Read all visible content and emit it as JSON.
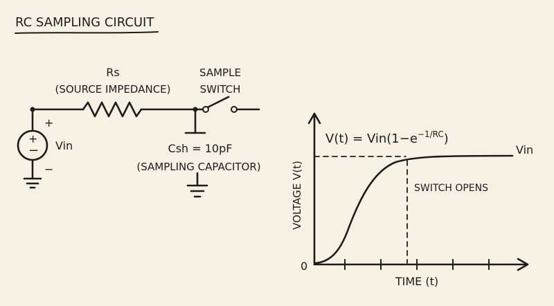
{
  "title": "RC SAMPLING CIRCUIT",
  "circuit": {
    "resistor_name": "Rs",
    "resistor_desc": "(SOURCE IMPEDANCE)",
    "switch_label_line1": "SAMPLE",
    "switch_label_line2": "SWITCH",
    "source_plus": "+",
    "source_minus": "−",
    "source_polarity_plus": "+",
    "source_polarity_minus": "−",
    "source_label": "Vin",
    "cap_value": "Csh = 10pF",
    "cap_desc": "(SAMPLING CAPACITOR)"
  },
  "graph": {
    "equation_prefix": "V(t) = Vin(1−",
    "equation_base": "e",
    "equation_exp": "−1/RC",
    "equation_suffix": ")",
    "asymptote_label": "Vin",
    "event_label": "SWITCH OPENS",
    "ylabel": "VOLTAGE V(t)",
    "xlabel": "TIME (t)",
    "origin_label": "0"
  }
}
